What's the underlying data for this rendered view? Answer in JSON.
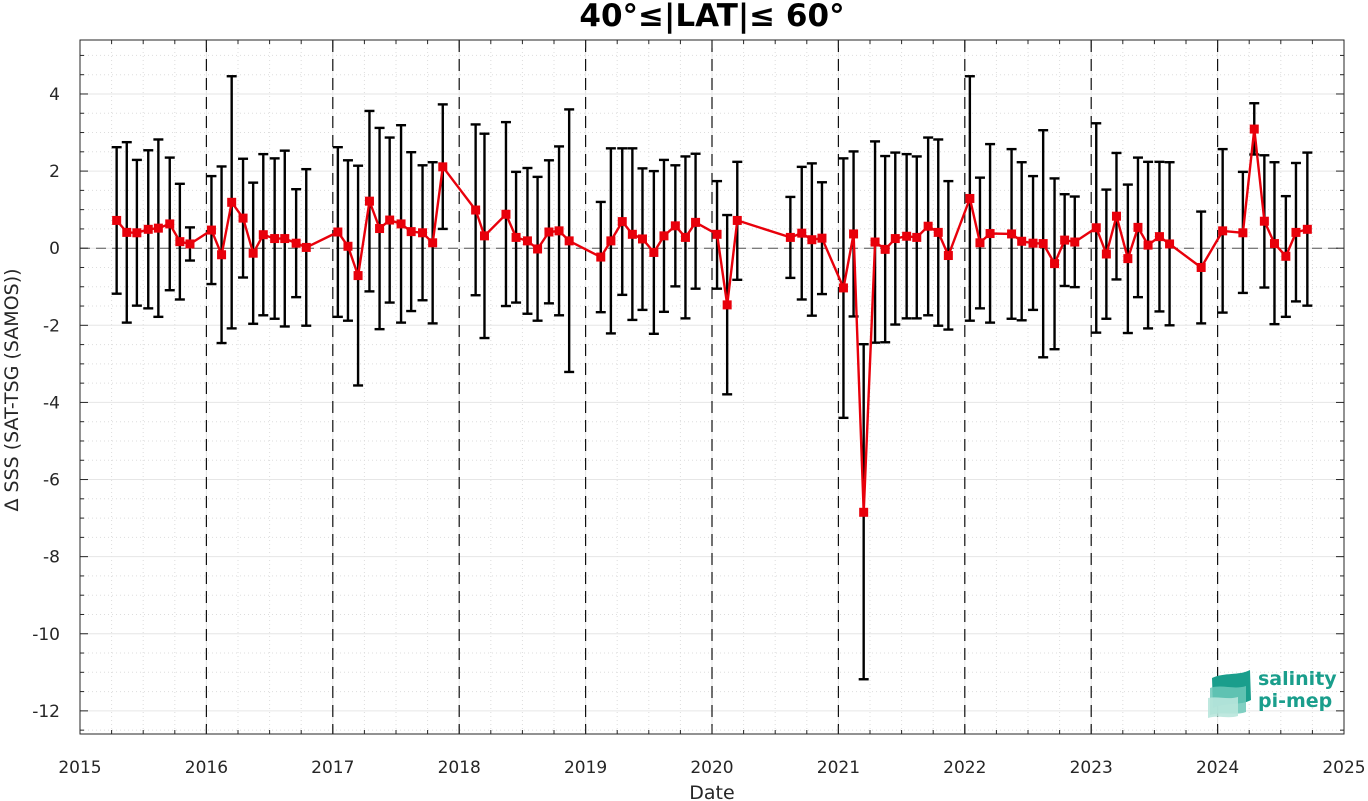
{
  "chart_data": {
    "type": "line",
    "title": "40°≤|LAT|≤ 60°",
    "xlabel": "Date",
    "ylabel": "Δ SSS (SAT-TSG (SAMOS))",
    "xlim": [
      2015,
      2025
    ],
    "ylim": [
      -12.6,
      5.4
    ],
    "x_ticks": [
      "2015",
      "2016",
      "2017",
      "2018",
      "2019",
      "2020",
      "2021",
      "2022",
      "2023",
      "2024",
      "2025"
    ],
    "y_ticks": [
      "4",
      "2",
      "0",
      "-2",
      "-4",
      "-6",
      "-8",
      "-10",
      "-12"
    ],
    "grid": true,
    "year_separators": [
      2016,
      2017,
      2018,
      2019,
      2020,
      2021,
      2022,
      2023,
      2024
    ],
    "series": [
      {
        "color": "#e8000b",
        "marker": "square",
        "error_bar_color": "#000000",
        "points": [
          {
            "x": 2015.29,
            "y": 0.72,
            "lo": -1.18,
            "hi": 2.62
          },
          {
            "x": 2015.37,
            "y": 0.41,
            "lo": -1.93,
            "hi": 2.75
          },
          {
            "x": 2015.45,
            "y": 0.4,
            "lo": -1.49,
            "hi": 2.29
          },
          {
            "x": 2015.54,
            "y": 0.49,
            "lo": -1.56,
            "hi": 2.54
          },
          {
            "x": 2015.62,
            "y": 0.52,
            "lo": -1.78,
            "hi": 2.82
          },
          {
            "x": 2015.71,
            "y": 0.63,
            "lo": -1.09,
            "hi": 2.35
          },
          {
            "x": 2015.79,
            "y": 0.17,
            "lo": -1.33,
            "hi": 1.67
          },
          {
            "x": 2015.87,
            "y": 0.11,
            "lo": -0.32,
            "hi": 0.54
          },
          {
            "x": 2016.04,
            "y": 0.47,
            "lo": -0.93,
            "hi": 1.87
          },
          {
            "x": 2016.12,
            "y": -0.17,
            "lo": -2.46,
            "hi": 2.12
          },
          {
            "x": 2016.2,
            "y": 1.19,
            "lo": -2.08,
            "hi": 4.46
          },
          {
            "x": 2016.29,
            "y": 0.78,
            "lo": -0.76,
            "hi": 2.32
          },
          {
            "x": 2016.37,
            "y": -0.13,
            "lo": -1.96,
            "hi": 1.7
          },
          {
            "x": 2016.45,
            "y": 0.35,
            "lo": -1.74,
            "hi": 2.44
          },
          {
            "x": 2016.54,
            "y": 0.25,
            "lo": -1.83,
            "hi": 2.33
          },
          {
            "x": 2016.62,
            "y": 0.25,
            "lo": -2.03,
            "hi": 2.53
          },
          {
            "x": 2016.71,
            "y": 0.13,
            "lo": -1.27,
            "hi": 1.53
          },
          {
            "x": 2016.79,
            "y": 0.02,
            "lo": -2.01,
            "hi": 2.05
          },
          {
            "x": 2017.04,
            "y": 0.42,
            "lo": -1.78,
            "hi": 2.62
          },
          {
            "x": 2017.12,
            "y": 0.05,
            "lo": -1.88,
            "hi": 2.28
          },
          {
            "x": 2017.2,
            "y": -0.71,
            "lo": -3.56,
            "hi": 2.14
          },
          {
            "x": 2017.29,
            "y": 1.22,
            "lo": -1.12,
            "hi": 3.56
          },
          {
            "x": 2017.37,
            "y": 0.51,
            "lo": -2.1,
            "hi": 3.12
          },
          {
            "x": 2017.45,
            "y": 0.73,
            "lo": -1.41,
            "hi": 2.87
          },
          {
            "x": 2017.54,
            "y": 0.63,
            "lo": -1.93,
            "hi": 3.19
          },
          {
            "x": 2017.62,
            "y": 0.43,
            "lo": -1.63,
            "hi": 2.49
          },
          {
            "x": 2017.71,
            "y": 0.4,
            "lo": -1.35,
            "hi": 2.15
          },
          {
            "x": 2017.79,
            "y": 0.14,
            "lo": -1.95,
            "hi": 2.23
          },
          {
            "x": 2017.87,
            "y": 2.11,
            "lo": 0.5,
            "hi": 3.73
          },
          {
            "x": 2018.13,
            "y": 0.99,
            "lo": -1.22,
            "hi": 3.21
          },
          {
            "x": 2018.2,
            "y": 0.32,
            "lo": -2.33,
            "hi": 2.97
          },
          {
            "x": 2018.37,
            "y": 0.88,
            "lo": -1.5,
            "hi": 3.27
          },
          {
            "x": 2018.45,
            "y": 0.28,
            "lo": -1.41,
            "hi": 1.98
          },
          {
            "x": 2018.54,
            "y": 0.19,
            "lo": -1.7,
            "hi": 2.08
          },
          {
            "x": 2018.62,
            "y": -0.02,
            "lo": -1.88,
            "hi": 1.85
          },
          {
            "x": 2018.71,
            "y": 0.42,
            "lo": -1.43,
            "hi": 2.28
          },
          {
            "x": 2018.79,
            "y": 0.45,
            "lo": -1.74,
            "hi": 2.64
          },
          {
            "x": 2018.87,
            "y": 0.19,
            "lo": -3.21,
            "hi": 3.6
          },
          {
            "x": 2019.12,
            "y": -0.23,
            "lo": -1.66,
            "hi": 1.2
          },
          {
            "x": 2019.2,
            "y": 0.19,
            "lo": -2.21,
            "hi": 2.59
          },
          {
            "x": 2019.29,
            "y": 0.69,
            "lo": -1.21,
            "hi": 2.59
          },
          {
            "x": 2019.37,
            "y": 0.36,
            "lo": -1.86,
            "hi": 2.59
          },
          {
            "x": 2019.45,
            "y": 0.24,
            "lo": -1.6,
            "hi": 2.07
          },
          {
            "x": 2019.54,
            "y": -0.11,
            "lo": -2.22,
            "hi": 2.0
          },
          {
            "x": 2019.62,
            "y": 0.32,
            "lo": -1.65,
            "hi": 2.29
          },
          {
            "x": 2019.71,
            "y": 0.58,
            "lo": -0.99,
            "hi": 2.15
          },
          {
            "x": 2019.79,
            "y": 0.28,
            "lo": -1.82,
            "hi": 2.38
          },
          {
            "x": 2019.87,
            "y": 0.67,
            "lo": -1.05,
            "hi": 2.45
          },
          {
            "x": 2020.04,
            "y": 0.36,
            "lo": -1.05,
            "hi": 1.74
          },
          {
            "x": 2020.12,
            "y": -1.47,
            "lo": -3.79,
            "hi": 0.86
          },
          {
            "x": 2020.2,
            "y": 0.72,
            "lo": -0.82,
            "hi": 2.24
          },
          {
            "x": 2020.62,
            "y": 0.28,
            "lo": -0.77,
            "hi": 1.33
          },
          {
            "x": 2020.71,
            "y": 0.39,
            "lo": -1.33,
            "hi": 2.11
          },
          {
            "x": 2020.79,
            "y": 0.22,
            "lo": -1.75,
            "hi": 2.2
          },
          {
            "x": 2020.87,
            "y": 0.26,
            "lo": -1.19,
            "hi": 1.71
          },
          {
            "x": 2021.04,
            "y": -1.03,
            "lo": -4.4,
            "hi": 2.33
          },
          {
            "x": 2021.12,
            "y": 0.37,
            "lo": -1.77,
            "hi": 2.51
          },
          {
            "x": 2021.2,
            "y": -6.85,
            "lo": -11.18,
            "hi": -2.49
          },
          {
            "x": 2021.29,
            "y": 0.16,
            "lo": -2.45,
            "hi": 2.77
          },
          {
            "x": 2021.37,
            "y": -0.03,
            "lo": -2.44,
            "hi": 2.39
          },
          {
            "x": 2021.45,
            "y": 0.25,
            "lo": -1.98,
            "hi": 2.48
          },
          {
            "x": 2021.54,
            "y": 0.31,
            "lo": -1.82,
            "hi": 2.44
          },
          {
            "x": 2021.62,
            "y": 0.28,
            "lo": -1.82,
            "hi": 2.38
          },
          {
            "x": 2021.71,
            "y": 0.57,
            "lo": -1.74,
            "hi": 2.87
          },
          {
            "x": 2021.79,
            "y": 0.41,
            "lo": -2.01,
            "hi": 2.82
          },
          {
            "x": 2021.87,
            "y": -0.19,
            "lo": -2.11,
            "hi": 1.74
          },
          {
            "x": 2022.04,
            "y": 1.29,
            "lo": -1.88,
            "hi": 4.46
          },
          {
            "x": 2022.12,
            "y": 0.14,
            "lo": -1.56,
            "hi": 1.83
          },
          {
            "x": 2022.2,
            "y": 0.38,
            "lo": -1.93,
            "hi": 2.7
          },
          {
            "x": 2022.37,
            "y": 0.37,
            "lo": -1.83,
            "hi": 2.57
          },
          {
            "x": 2022.45,
            "y": 0.18,
            "lo": -1.87,
            "hi": 2.23
          },
          {
            "x": 2022.54,
            "y": 0.13,
            "lo": -1.6,
            "hi": 1.87
          },
          {
            "x": 2022.62,
            "y": 0.12,
            "lo": -2.83,
            "hi": 3.06
          },
          {
            "x": 2022.71,
            "y": -0.4,
            "lo": -2.62,
            "hi": 1.81
          },
          {
            "x": 2022.79,
            "y": 0.21,
            "lo": -0.98,
            "hi": 1.4
          },
          {
            "x": 2022.87,
            "y": 0.16,
            "lo": -1.01,
            "hi": 1.34
          },
          {
            "x": 2023.04,
            "y": 0.53,
            "lo": -2.19,
            "hi": 3.24
          },
          {
            "x": 2023.12,
            "y": -0.15,
            "lo": -1.83,
            "hi": 1.52
          },
          {
            "x": 2023.2,
            "y": 0.83,
            "lo": -0.81,
            "hi": 2.47
          },
          {
            "x": 2023.29,
            "y": -0.27,
            "lo": -2.2,
            "hi": 1.65
          },
          {
            "x": 2023.37,
            "y": 0.54,
            "lo": -1.27,
            "hi": 2.35
          },
          {
            "x": 2023.45,
            "y": 0.08,
            "lo": -2.08,
            "hi": 2.24
          },
          {
            "x": 2023.54,
            "y": 0.3,
            "lo": -1.64,
            "hi": 2.24
          },
          {
            "x": 2023.62,
            "y": 0.11,
            "lo": -2.0,
            "hi": 2.23
          },
          {
            "x": 2023.87,
            "y": -0.5,
            "lo": -1.95,
            "hi": 0.95
          },
          {
            "x": 2024.04,
            "y": 0.45,
            "lo": -1.67,
            "hi": 2.57
          },
          {
            "x": 2024.2,
            "y": 0.4,
            "lo": -1.16,
            "hi": 1.98
          },
          {
            "x": 2024.29,
            "y": 3.09,
            "lo": 2.43,
            "hi": 3.76
          },
          {
            "x": 2024.37,
            "y": 0.7,
            "lo": -1.02,
            "hi": 2.41
          },
          {
            "x": 2024.45,
            "y": 0.12,
            "lo": -1.97,
            "hi": 2.23
          },
          {
            "x": 2024.54,
            "y": -0.21,
            "lo": -1.78,
            "hi": 1.35
          },
          {
            "x": 2024.62,
            "y": 0.41,
            "lo": -1.38,
            "hi": 2.21
          },
          {
            "x": 2024.71,
            "y": 0.49,
            "lo": -1.49,
            "hi": 2.48
          }
        ]
      }
    ]
  },
  "logo": {
    "line1": "salinity",
    "line2": "pi-mep",
    "color": "#1a9e8c"
  }
}
